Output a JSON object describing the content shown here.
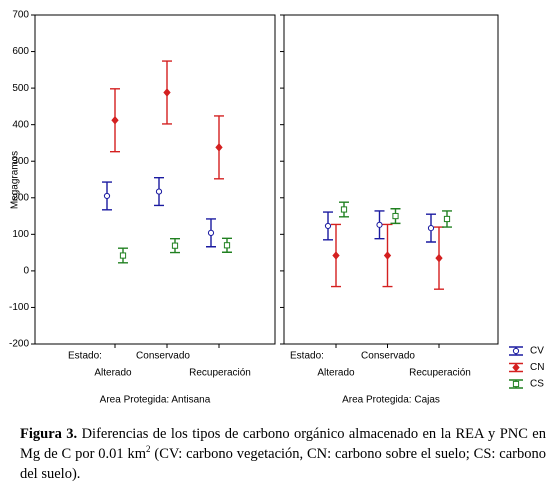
{
  "chart_data": [
    {
      "type": "errorbar",
      "ylabel": "Megagramos",
      "xlabel": "Area Protegida: Antisana",
      "group_label": "Estado:",
      "categories": [
        "Alterado",
        "Conservado",
        "Recuperación"
      ],
      "ylim": [
        -200,
        700
      ],
      "yticks": [
        -200,
        -100,
        0,
        100,
        200,
        300,
        400,
        500,
        600,
        700
      ],
      "series": [
        {
          "color": "#1a1aa0",
          "marker": "circle",
          "values": [
            205,
            217,
            104
          ],
          "errors": [
            38,
            38,
            38
          ]
        },
        {
          "color": "#d42020",
          "marker": "diamond",
          "values": [
            412,
            488,
            338
          ],
          "errors": [
            86,
            86,
            86
          ]
        },
        {
          "color": "#208020",
          "marker": "square",
          "values": [
            42,
            69,
            70
          ],
          "errors": [
            20,
            19,
            19
          ]
        }
      ]
    },
    {
      "type": "errorbar",
      "xlabel": "Area Protegida: Cajas",
      "group_label": "Estado:",
      "categories": [
        "Alterado",
        "Conservado",
        "Recuperación"
      ],
      "ylim": [
        -200,
        700
      ],
      "yticks": [
        -200,
        -100,
        0,
        100,
        200,
        300,
        400,
        500,
        600,
        700
      ],
      "series": [
        {
          "name": "CV",
          "color": "#1a1aa0",
          "marker": "circle",
          "values": [
            123,
            126,
            117
          ],
          "errors": [
            38,
            38,
            38
          ]
        },
        {
          "name": "CN",
          "color": "#d42020",
          "marker": "diamond",
          "values": [
            42,
            42,
            35
          ],
          "errors": [
            85,
            85,
            85
          ]
        },
        {
          "name": "CS",
          "color": "#208020",
          "marker": "square",
          "values": [
            168,
            150,
            142
          ],
          "errors": [
            20,
            20,
            22
          ]
        }
      ]
    }
  ],
  "caption": [
    "Figura 3.",
    " Diferencias de los tipos de carbono orgánico almacenado en la REA y PNC en Mg de C por 0.01 km",
    "2",
    " (CV: carbono vegetación, CN: carbono sobre el suelo; CS: carbono del suelo)."
  ]
}
